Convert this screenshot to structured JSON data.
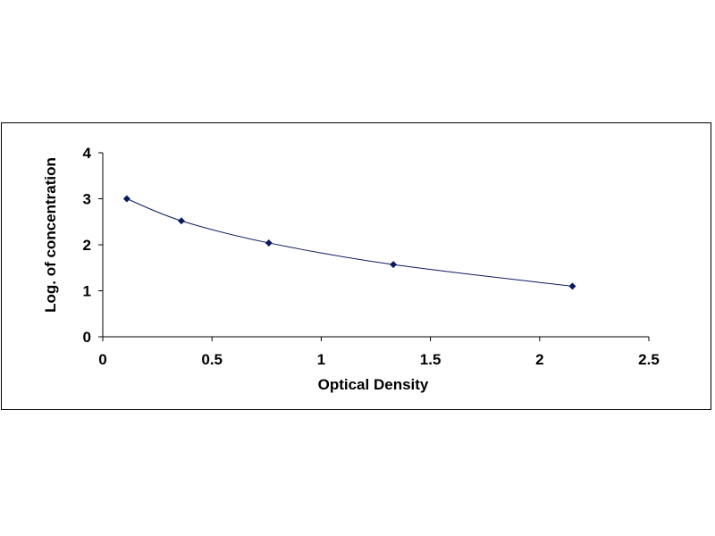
{
  "chart_data": {
    "type": "scatter",
    "xlabel": "Optical Density",
    "ylabel": "Log. of concentration",
    "xlim": [
      0,
      2.5
    ],
    "ylim": [
      0,
      4
    ],
    "x_ticks": [
      "0",
      "0.5",
      "1",
      "1.5",
      "2",
      "2.5"
    ],
    "y_ticks": [
      "0",
      "1",
      "2",
      "3",
      "4"
    ],
    "grid": false,
    "legend": "none",
    "trendline": "smooth",
    "points": [
      {
        "x": 0.11,
        "y": 3.0
      },
      {
        "x": 0.36,
        "y": 2.52
      },
      {
        "x": 0.76,
        "y": 2.04
      },
      {
        "x": 1.33,
        "y": 1.57
      },
      {
        "x": 2.15,
        "y": 1.1
      }
    ],
    "colors": {
      "marker": "#0a1a5e",
      "line": "#0a1a5e",
      "axis": "#000000"
    }
  }
}
